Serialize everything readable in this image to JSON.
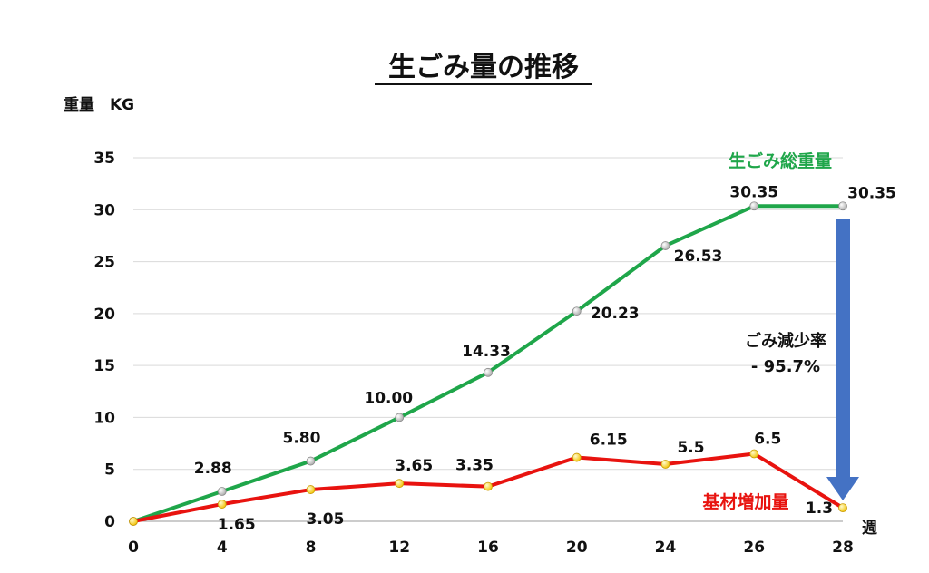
{
  "chart_data": {
    "type": "line",
    "title": "生ごみ量の推移",
    "ylabel": "重量　KG",
    "xlabel": "週",
    "ylim": [
      0,
      35
    ],
    "yticks": [
      0,
      5,
      10,
      15,
      20,
      25,
      30,
      35
    ],
    "x": [
      0,
      4,
      8,
      12,
      16,
      20,
      24,
      26,
      28
    ],
    "grid": true,
    "series": [
      {
        "name": "生ごみ総重量",
        "color": "#1fa64a",
        "values": [
          0,
          2.88,
          5.8,
          10.0,
          14.33,
          20.23,
          26.53,
          30.35,
          30.35
        ],
        "labels": [
          "",
          "2.88",
          "5.80",
          "10.00",
          "14.33",
          "20.23",
          "26.53",
          "30.35",
          "30.35"
        ]
      },
      {
        "name": "基材増加量",
        "color": "#e8130f",
        "values": [
          0,
          1.65,
          3.05,
          3.65,
          3.35,
          6.15,
          5.5,
          6.5,
          1.3
        ],
        "labels": [
          "",
          "1.65",
          "3.05",
          "3.65",
          "3.35",
          "6.15",
          "5.5",
          "6.5",
          "1.3"
        ]
      }
    ],
    "annotation": {
      "line1": "ごみ減少率",
      "line2": "- 95.7%",
      "arrow_color": "#4472c4"
    }
  }
}
